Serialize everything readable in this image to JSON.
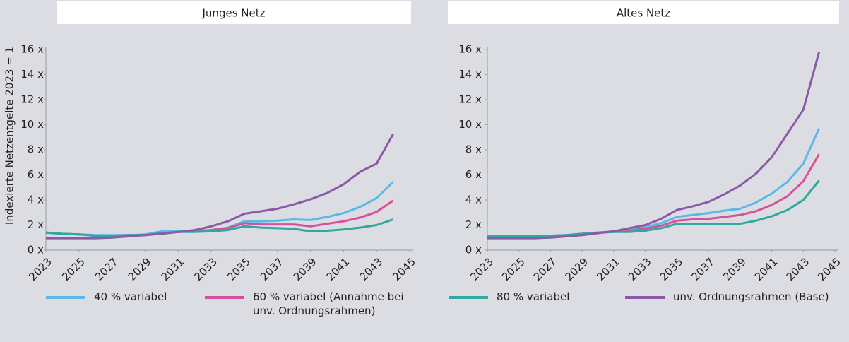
{
  "chart_data": [
    {
      "type": "line",
      "title": "Junges Netz",
      "y_label": "Indexierte Netzentgelte 2023 = 1",
      "x": [
        2023,
        2024,
        2025,
        2026,
        2027,
        2028,
        2029,
        2030,
        2031,
        2032,
        2033,
        2034,
        2035,
        2036,
        2037,
        2038,
        2039,
        2040,
        2041,
        2042,
        2043,
        2044
      ],
      "xlim": [
        2023,
        2045
      ],
      "xticks": [
        2023,
        2025,
        2027,
        2029,
        2031,
        2033,
        2035,
        2037,
        2039,
        2041,
        2043,
        2045
      ],
      "ylim": [
        0,
        16
      ],
      "yticks": [
        {
          "value": 0,
          "label": "0 x"
        },
        {
          "value": 2,
          "label": "2 x"
        },
        {
          "value": 4,
          "label": "4 x"
        },
        {
          "value": 6,
          "label": "6 x"
        },
        {
          "value": 8,
          "label": "8 x"
        },
        {
          "value": 10,
          "label": "10 x"
        },
        {
          "value": 12,
          "label": "12 x"
        },
        {
          "value": 14,
          "label": "14 x"
        },
        {
          "value": 16,
          "label": "16 x"
        }
      ],
      "grid": false,
      "series": [
        {
          "name": "40 % variabel",
          "color": "#5bb8e8",
          "values": [
            1.4,
            1.3,
            1.25,
            1.2,
            1.2,
            1.2,
            1.25,
            1.5,
            1.55,
            1.55,
            1.6,
            1.8,
            2.3,
            2.3,
            2.35,
            2.45,
            2.4,
            2.65,
            2.95,
            3.45,
            4.15,
            5.45
          ]
        },
        {
          "name": "60 % variabel (Annahme bei unv. Ordnungsrahmen)",
          "color": "#d9509a",
          "values": [
            1.4,
            1.3,
            1.25,
            1.15,
            1.15,
            1.2,
            1.2,
            1.35,
            1.45,
            1.5,
            1.6,
            1.75,
            2.15,
            2.05,
            2.05,
            2.05,
            1.9,
            2.1,
            2.3,
            2.6,
            3.05,
            3.95
          ]
        },
        {
          "name": "80 % variabel",
          "color": "#2fa9a0",
          "values": [
            1.4,
            1.3,
            1.25,
            1.15,
            1.15,
            1.2,
            1.2,
            1.35,
            1.45,
            1.45,
            1.5,
            1.6,
            1.9,
            1.8,
            1.75,
            1.7,
            1.5,
            1.55,
            1.65,
            1.8,
            2.0,
            2.45
          ]
        },
        {
          "name": "unv. Ordnungsrahmen (Base)",
          "color": "#8a5aa8",
          "values": [
            0.95,
            0.95,
            0.95,
            0.95,
            1.0,
            1.1,
            1.2,
            1.3,
            1.45,
            1.6,
            1.9,
            2.3,
            2.9,
            3.1,
            3.3,
            3.65,
            4.05,
            4.55,
            5.25,
            6.25,
            6.9,
            9.25
          ]
        }
      ]
    },
    {
      "type": "line",
      "title": "Altes Netz",
      "x": [
        2023,
        2024,
        2025,
        2026,
        2027,
        2028,
        2029,
        2030,
        2031,
        2032,
        2033,
        2034,
        2035,
        2036,
        2037,
        2038,
        2039,
        2040,
        2041,
        2042,
        2043,
        2044
      ],
      "xlim": [
        2023,
        2045
      ],
      "xticks": [
        2023,
        2025,
        2027,
        2029,
        2031,
        2033,
        2035,
        2037,
        2039,
        2041,
        2043,
        2045
      ],
      "ylim": [
        0,
        16
      ],
      "yticks": [
        {
          "value": 0,
          "label": "0 x"
        },
        {
          "value": 2,
          "label": "2 x"
        },
        {
          "value": 4,
          "label": "4 x"
        },
        {
          "value": 6,
          "label": "6 x"
        },
        {
          "value": 8,
          "label": "8 x"
        },
        {
          "value": 10,
          "label": "10 x"
        },
        {
          "value": 12,
          "label": "12 x"
        },
        {
          "value": 14,
          "label": "14 x"
        },
        {
          "value": 16,
          "label": "16 x"
        }
      ],
      "grid": false,
      "series": [
        {
          "color": "#5bb8e8",
          "values": [
            1.15,
            1.15,
            1.1,
            1.1,
            1.15,
            1.2,
            1.3,
            1.4,
            1.5,
            1.65,
            1.85,
            2.15,
            2.65,
            2.8,
            2.95,
            3.15,
            3.3,
            3.8,
            4.5,
            5.45,
            6.9,
            9.7
          ]
        },
        {
          "color": "#d9509a",
          "values": [
            1.15,
            1.1,
            1.1,
            1.1,
            1.15,
            1.2,
            1.3,
            1.4,
            1.45,
            1.55,
            1.7,
            1.95,
            2.35,
            2.45,
            2.5,
            2.65,
            2.8,
            3.1,
            3.6,
            4.3,
            5.5,
            7.65
          ]
        },
        {
          "color": "#2fa9a0",
          "values": [
            1.15,
            1.1,
            1.1,
            1.1,
            1.15,
            1.2,
            1.3,
            1.4,
            1.45,
            1.45,
            1.55,
            1.75,
            2.1,
            2.1,
            2.1,
            2.1,
            2.1,
            2.35,
            2.7,
            3.2,
            4.0,
            5.55
          ]
        },
        {
          "color": "#8a5aa8",
          "values": [
            0.95,
            0.95,
            0.95,
            0.95,
            1.0,
            1.1,
            1.2,
            1.35,
            1.5,
            1.75,
            2.0,
            2.5,
            3.2,
            3.5,
            3.85,
            4.45,
            5.15,
            6.1,
            7.4,
            9.3,
            11.2,
            15.8
          ]
        }
      ]
    }
  ]
}
